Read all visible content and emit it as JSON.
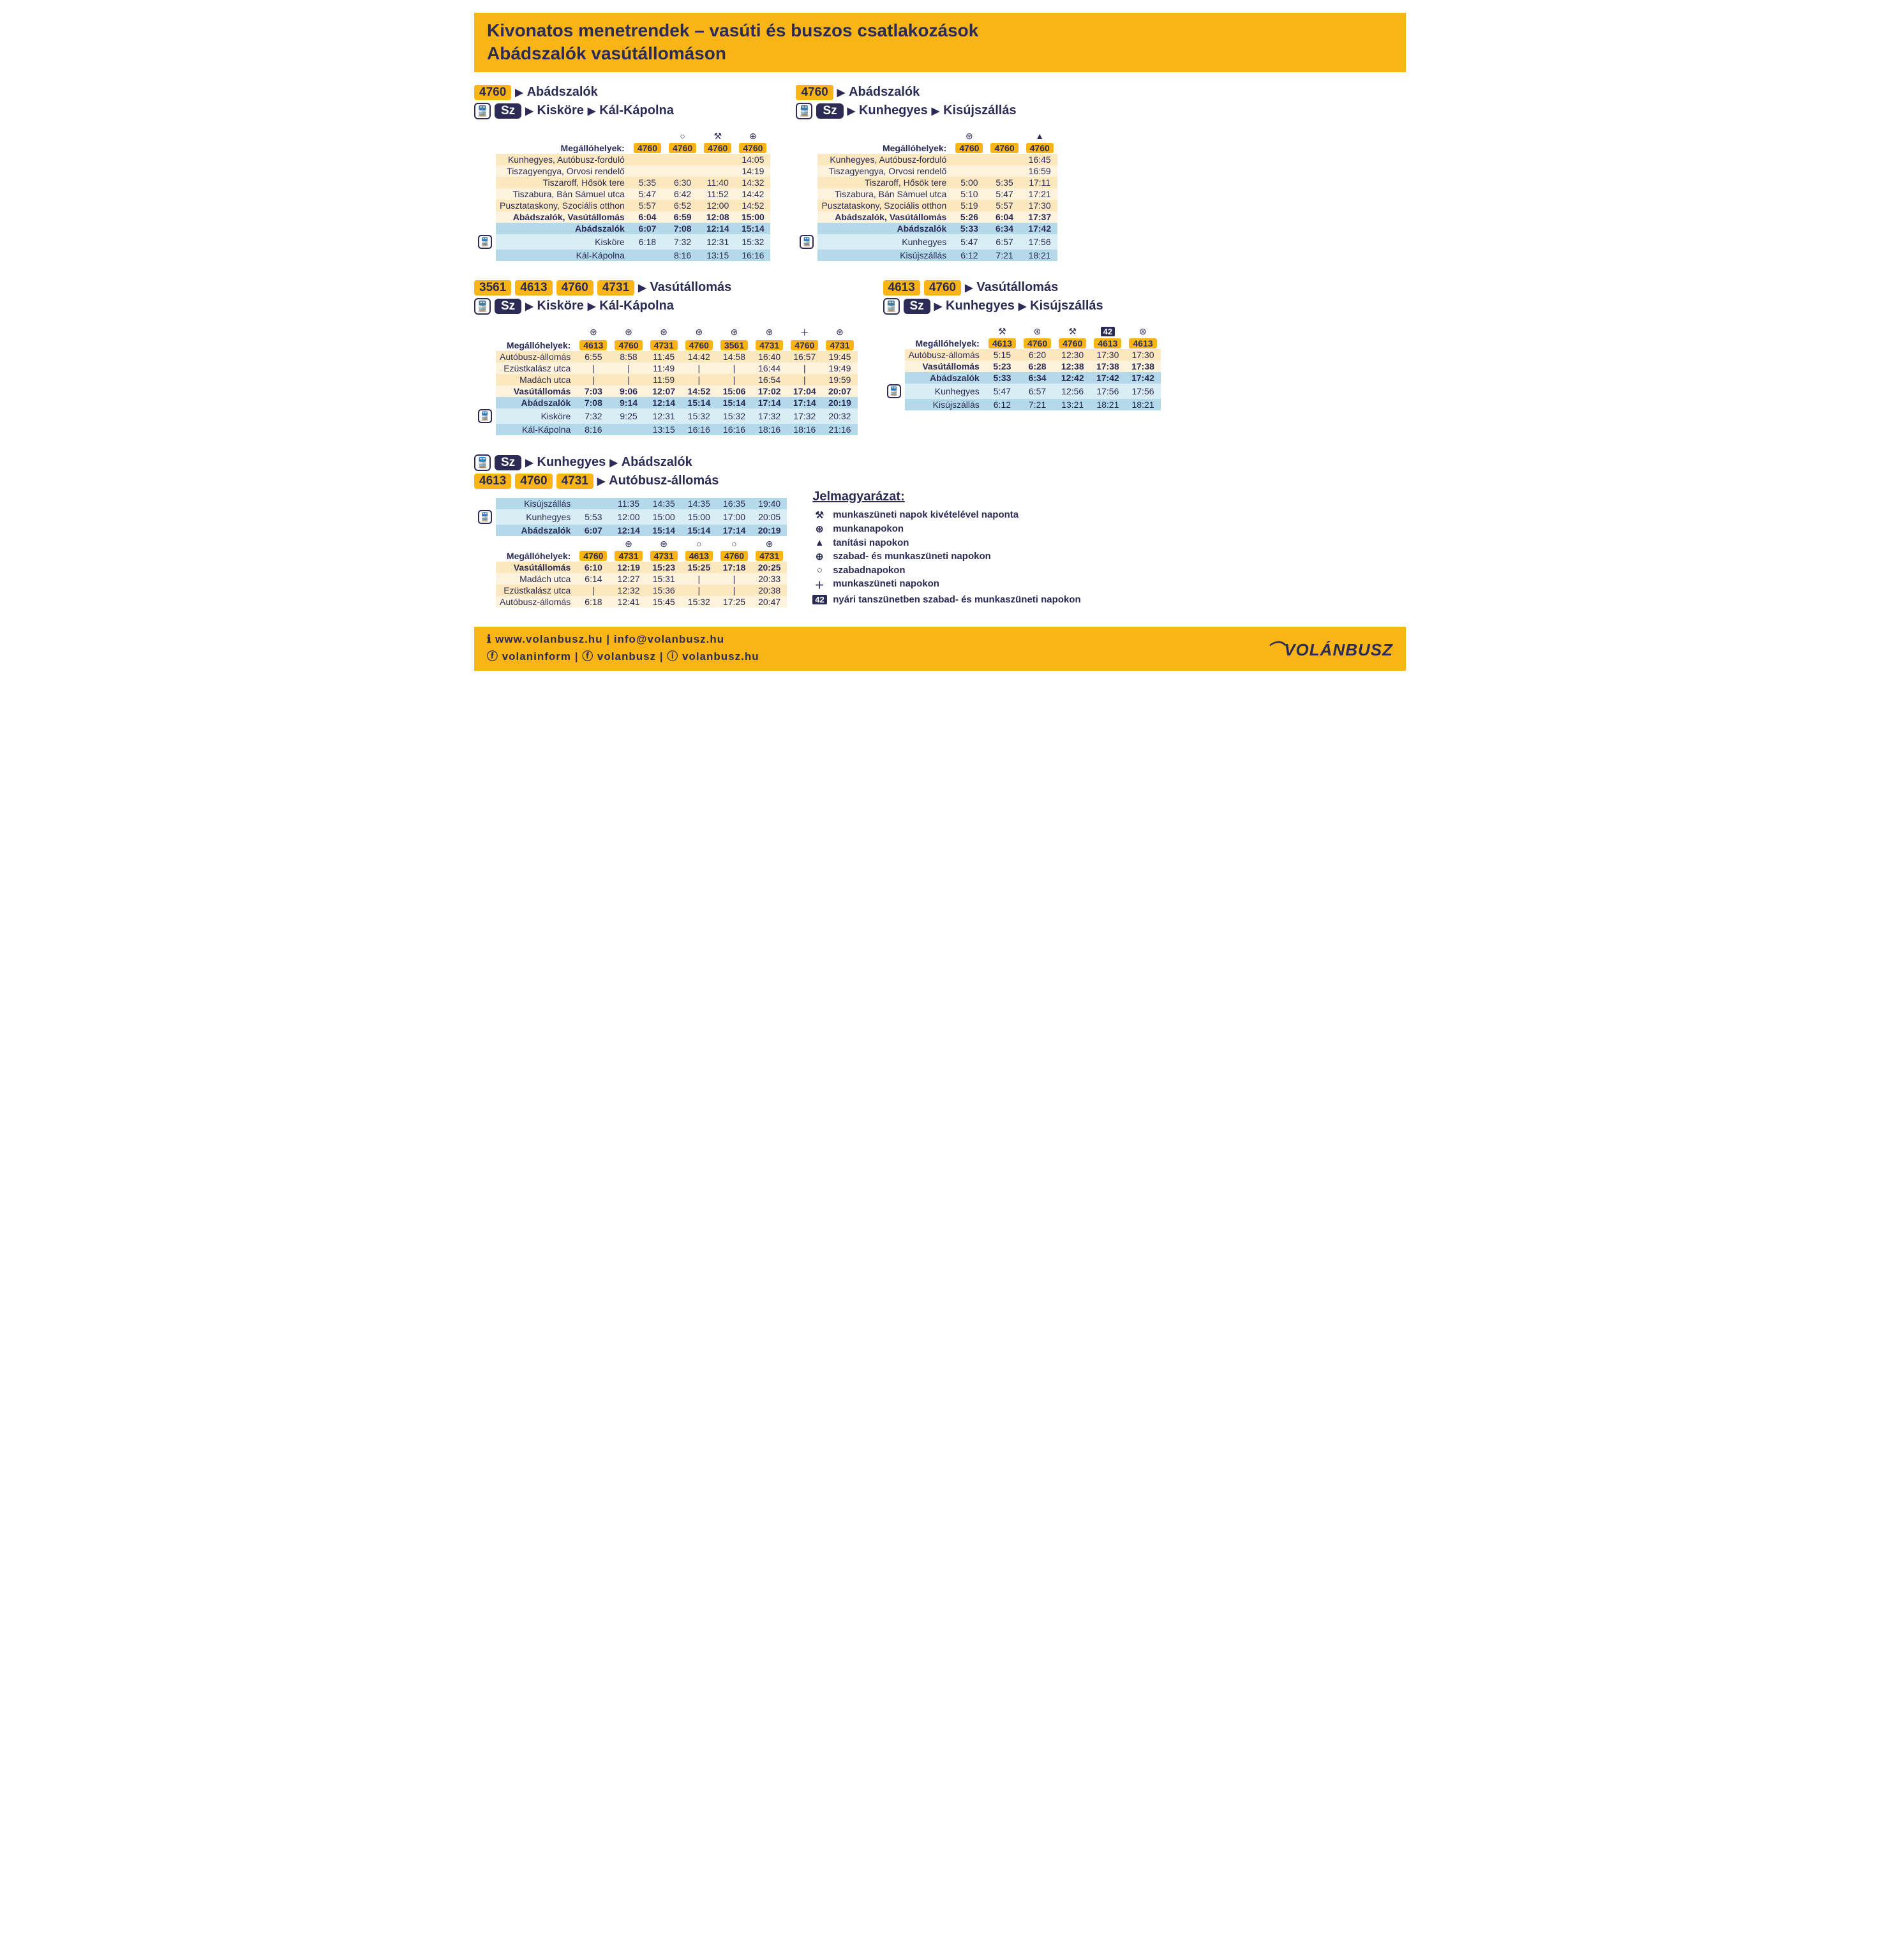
{
  "colors": {
    "accent": "#f9b416",
    "navy": "#2b2b56",
    "busOdd": "#fce8be",
    "busEven": "#fdf3dd",
    "trainOdd": "#b4daea",
    "trainEven": "#d9edf5"
  },
  "header": {
    "line1": "Kivonatos menetrendek – vasúti és buszos csatlakozások",
    "line2": "Abádszalók vasútállomáson"
  },
  "labels": {
    "stops": "Megállóhelyek:",
    "sz": "Sz"
  },
  "symbols": {
    "hammers": "⚒",
    "hammersCircle": "⊛",
    "triangle": "▲",
    "plusCircle": "⊕",
    "circle": "○",
    "plus": "＋",
    "box42": "42"
  },
  "block1": {
    "routeBadges": [
      "4760"
    ],
    "dest1": "Abádszalók",
    "trainDest": [
      "Kisköre",
      "Kál-Kápolna"
    ],
    "colSymbols": [
      "",
      "○",
      "⚒",
      "⊕"
    ],
    "colRoutes": [
      "4760",
      "4760",
      "4760",
      "4760"
    ],
    "busRows": [
      {
        "name": "Kunhegyes, Autóbusz-forduló",
        "t": [
          "",
          "",
          "",
          "14:05"
        ]
      },
      {
        "name": "Tiszagyengya, Orvosi rendelő",
        "t": [
          "",
          "",
          "",
          "14:19"
        ]
      },
      {
        "name": "Tiszaroff, Hősök tere",
        "t": [
          "5:35",
          "6:30",
          "11:40",
          "14:32"
        ]
      },
      {
        "name": "Tiszabura, Bán Sámuel utca",
        "t": [
          "5:47",
          "6:42",
          "11:52",
          "14:42"
        ]
      },
      {
        "name": "Pusztataskony, Szociális otthon",
        "t": [
          "5:57",
          "6:52",
          "12:00",
          "14:52"
        ]
      },
      {
        "name": "Abádszalók, Vasútállomás",
        "t": [
          "6:04",
          "6:59",
          "12:08",
          "15:00"
        ],
        "bold": true
      }
    ],
    "trainRows": [
      {
        "name": "Abádszalók",
        "t": [
          "6:07",
          "7:08",
          "12:14",
          "15:14"
        ],
        "bold": true
      },
      {
        "name": "Kisköre",
        "t": [
          "6:18",
          "7:32",
          "12:31",
          "15:32"
        ],
        "marker": true
      },
      {
        "name": "Kál-Kápolna",
        "t": [
          "",
          "8:16",
          "13:15",
          "16:16"
        ]
      }
    ]
  },
  "block2": {
    "routeBadges": [
      "4760"
    ],
    "dest1": "Abádszalók",
    "trainDest": [
      "Kunhegyes",
      "Kisújszállás"
    ],
    "colSymbols": [
      "⊛",
      "",
      "▲"
    ],
    "colRoutes": [
      "4760",
      "4760",
      "4760"
    ],
    "busRows": [
      {
        "name": "Kunhegyes, Autóbusz-forduló",
        "t": [
          "",
          "",
          "16:45"
        ]
      },
      {
        "name": "Tiszagyengya, Orvosi rendelő",
        "t": [
          "",
          "",
          "16:59"
        ]
      },
      {
        "name": "Tiszaroff, Hősök tere",
        "t": [
          "5:00",
          "5:35",
          "17:11"
        ]
      },
      {
        "name": "Tiszabura, Bán Sámuel utca",
        "t": [
          "5:10",
          "5:47",
          "17:21"
        ]
      },
      {
        "name": "Pusztataskony, Szociális otthon",
        "t": [
          "5:19",
          "5:57",
          "17:30"
        ]
      },
      {
        "name": "Abádszalók, Vasútállomás",
        "t": [
          "5:26",
          "6:04",
          "17:37"
        ],
        "bold": true
      }
    ],
    "trainRows": [
      {
        "name": "Abádszalók",
        "t": [
          "5:33",
          "6:34",
          "17:42"
        ],
        "bold": true
      },
      {
        "name": "Kunhegyes",
        "t": [
          "5:47",
          "6:57",
          "17:56"
        ],
        "marker": true
      },
      {
        "name": "Kisújszállás",
        "t": [
          "6:12",
          "7:21",
          "18:21"
        ]
      }
    ]
  },
  "block3": {
    "routeBadges": [
      "3561",
      "4613",
      "4760",
      "4731"
    ],
    "dest1": "Vasútállomás",
    "trainDest": [
      "Kisköre",
      "Kál-Kápolna"
    ],
    "colSymbols": [
      "⊛",
      "⊛",
      "⊛",
      "⊛",
      "⊛",
      "⊛",
      "＋",
      "⊛"
    ],
    "colRoutes": [
      "4613",
      "4760",
      "4731",
      "4760",
      "3561",
      "4731",
      "4760",
      "4731"
    ],
    "busRows": [
      {
        "name": "Autóbusz-állomás",
        "t": [
          "6:55",
          "8:58",
          "11:45",
          "14:42",
          "14:58",
          "16:40",
          "16:57",
          "19:45"
        ]
      },
      {
        "name": "Ezüstkalász utca",
        "t": [
          "|",
          "|",
          "11:49",
          "|",
          "|",
          "16:44",
          "|",
          "19:49"
        ]
      },
      {
        "name": "Madách utca",
        "t": [
          "|",
          "|",
          "11:59",
          "|",
          "|",
          "16:54",
          "|",
          "19:59"
        ]
      },
      {
        "name": "Vasútállomás",
        "t": [
          "7:03",
          "9:06",
          "12:07",
          "14:52",
          "15:06",
          "17:02",
          "17:04",
          "20:07"
        ],
        "bold": true
      }
    ],
    "trainRows": [
      {
        "name": "Abádszalók",
        "t": [
          "7:08",
          "9:14",
          "12:14",
          "15:14",
          "15:14",
          "17:14",
          "17:14",
          "20:19"
        ],
        "bold": true
      },
      {
        "name": "Kisköre",
        "t": [
          "7:32",
          "9:25",
          "12:31",
          "15:32",
          "15:32",
          "17:32",
          "17:32",
          "20:32"
        ],
        "marker": true
      },
      {
        "name": "Kál-Kápolna",
        "t": [
          "8:16",
          "",
          "13:15",
          "16:16",
          "16:16",
          "18:16",
          "18:16",
          "21:16"
        ]
      }
    ]
  },
  "block4": {
    "routeBadges": [
      "4613",
      "4760"
    ],
    "dest1": "Vasútállomás",
    "trainDest": [
      "Kunhegyes",
      "Kisújszállás"
    ],
    "colSymbols": [
      "⚒",
      "⊛",
      "⚒",
      "42",
      "⊛"
    ],
    "colRoutes": [
      "4613",
      "4760",
      "4760",
      "4613",
      "4613"
    ],
    "busRows": [
      {
        "name": "Autóbusz-állomás",
        "t": [
          "5:15",
          "6:20",
          "12:30",
          "17:30",
          "17:30"
        ]
      },
      {
        "name": "Vasútállomás",
        "t": [
          "5:23",
          "6:28",
          "12:38",
          "17:38",
          "17:38"
        ],
        "bold": true
      }
    ],
    "trainRows": [
      {
        "name": "Abádszalók",
        "t": [
          "5:33",
          "6:34",
          "12:42",
          "17:42",
          "17:42"
        ],
        "bold": true
      },
      {
        "name": "Kunhegyes",
        "t": [
          "5:47",
          "6:57",
          "12:56",
          "17:56",
          "17:56"
        ],
        "marker": true
      },
      {
        "name": "Kisújszállás",
        "t": [
          "6:12",
          "7:21",
          "13:21",
          "18:21",
          "18:21"
        ]
      }
    ]
  },
  "block5": {
    "trainDest": [
      "Kunhegyes",
      "Abádszalók"
    ],
    "routeBadges": [
      "4613",
      "4760",
      "4731"
    ],
    "dest1": "Autóbusz-állomás",
    "trainRows": [
      {
        "name": "Kisújszállás",
        "t": [
          "",
          "11:35",
          "14:35",
          "14:35",
          "16:35",
          "19:40"
        ]
      },
      {
        "name": "Kunhegyes",
        "t": [
          "5:53",
          "12:00",
          "15:00",
          "15:00",
          "17:00",
          "20:05"
        ],
        "marker": true
      },
      {
        "name": "Abádszalók",
        "t": [
          "6:07",
          "12:14",
          "15:14",
          "15:14",
          "17:14",
          "20:19"
        ],
        "bold": true
      }
    ],
    "colSymbols": [
      "",
      "⊛",
      "⊛",
      "○",
      "○",
      "⊛"
    ],
    "colRoutes": [
      "4760",
      "4731",
      "4731",
      "4613",
      "4760",
      "4731"
    ],
    "busRows": [
      {
        "name": "Vasútállomás",
        "t": [
          "6:10",
          "12:19",
          "15:23",
          "15:25",
          "17:18",
          "20:25"
        ],
        "bold": true
      },
      {
        "name": "Madách utca",
        "t": [
          "6:14",
          "12:27",
          "15:31",
          "|",
          "|",
          "20:33"
        ]
      },
      {
        "name": "Ezüstkalász utca",
        "t": [
          "|",
          "12:32",
          "15:36",
          "|",
          "|",
          "20:38"
        ]
      },
      {
        "name": "Autóbusz-állomás",
        "t": [
          "6:18",
          "12:41",
          "15:45",
          "15:32",
          "17:25",
          "20:47"
        ]
      }
    ]
  },
  "legend": {
    "title": "Jelmagyarázat:",
    "items": [
      {
        "sym": "⚒",
        "text": "munkaszüneti napok kivételével naponta"
      },
      {
        "sym": "⊛",
        "text": "munkanapokon"
      },
      {
        "sym": "▲",
        "text": "tanítási napokon"
      },
      {
        "sym": "⊕",
        "text": "szabad- és munkaszüneti napokon"
      },
      {
        "sym": "○",
        "text": "szabadnapokon"
      },
      {
        "sym": "＋",
        "text": "munkaszüneti napokon"
      },
      {
        "sym": "42",
        "text": "nyári tanszünetben szabad- és munkaszüneti napokon",
        "box": true
      }
    ]
  },
  "footer": {
    "line1": "ℹ www.volanbusz.hu | info@volanbusz.hu",
    "line2": "ⓕ volaninform | ⓕ volanbusz | ⓘ volanbusz.hu",
    "brand": "VOLÁNBUSZ"
  }
}
